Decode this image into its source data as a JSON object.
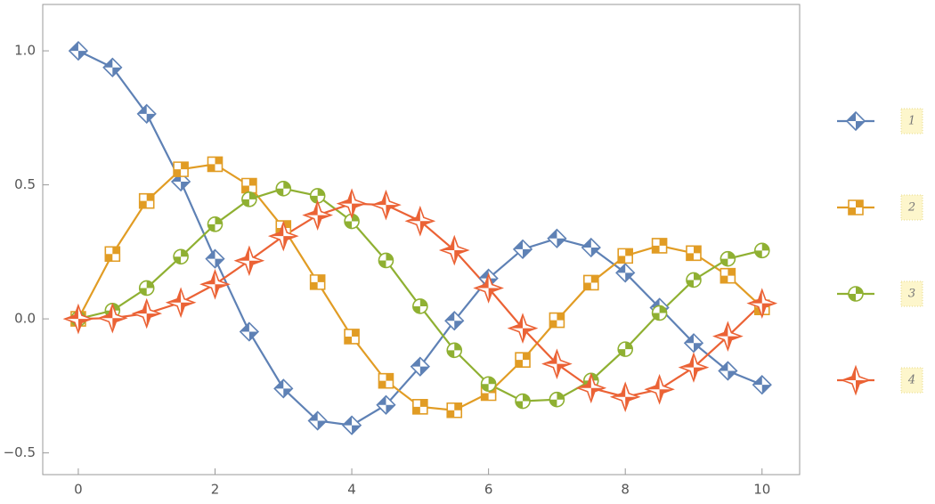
{
  "chart_data": {
    "type": "line",
    "x": [
      0,
      0.5,
      1,
      1.5,
      2,
      2.5,
      3,
      3.5,
      4,
      4.5,
      5,
      5.5,
      6,
      6.5,
      7,
      7.5,
      8,
      8.5,
      9,
      9.5,
      10
    ],
    "series": [
      {
        "name": "1",
        "color": "#5e81b5",
        "marker": "diamond",
        "values": [
          1,
          0.938,
          0.765,
          0.512,
          0.224,
          -0.048,
          -0.26,
          -0.38,
          -0.397,
          -0.321,
          -0.178,
          -0.007,
          0.151,
          0.26,
          0.3,
          0.266,
          0.172,
          0.042,
          -0.09,
          -0.194,
          -0.246
        ]
      },
      {
        "name": "2",
        "color": "#e19c24",
        "marker": "square",
        "values": [
          0,
          0.242,
          0.44,
          0.558,
          0.577,
          0.497,
          0.339,
          0.137,
          -0.066,
          -0.231,
          -0.328,
          -0.341,
          -0.277,
          -0.153,
          -0.005,
          0.135,
          0.235,
          0.273,
          0.245,
          0.161,
          0.043
        ]
      },
      {
        "name": "3",
        "color": "#8fb032",
        "marker": "circle",
        "values": [
          0,
          0.031,
          0.115,
          0.232,
          0.353,
          0.446,
          0.486,
          0.459,
          0.364,
          0.218,
          0.047,
          -0.117,
          -0.243,
          -0.307,
          -0.301,
          -0.23,
          -0.113,
          0.022,
          0.145,
          0.224,
          0.255
        ]
      },
      {
        "name": "4",
        "color": "#eb6235",
        "marker": "star",
        "values": [
          0,
          0.003,
          0.02,
          0.061,
          0.129,
          0.217,
          0.309,
          0.387,
          0.43,
          0.425,
          0.365,
          0.256,
          0.115,
          -0.035,
          -0.168,
          -0.258,
          -0.291,
          -0.263,
          -0.181,
          -0.065,
          0.058
        ]
      }
    ],
    "xlim": [
      -0.52,
      10.55
    ],
    "ylim": [
      -0.581,
      1.173
    ],
    "xticks": [
      0,
      2,
      4,
      6,
      8,
      10
    ],
    "yticks": [
      {
        "value": -0.5,
        "label": "−0.5"
      },
      {
        "value": 0,
        "label": "0.0"
      },
      {
        "value": 0.5,
        "label": "0.5"
      },
      {
        "value": 1,
        "label": "1.0"
      }
    ],
    "legend": "right"
  }
}
